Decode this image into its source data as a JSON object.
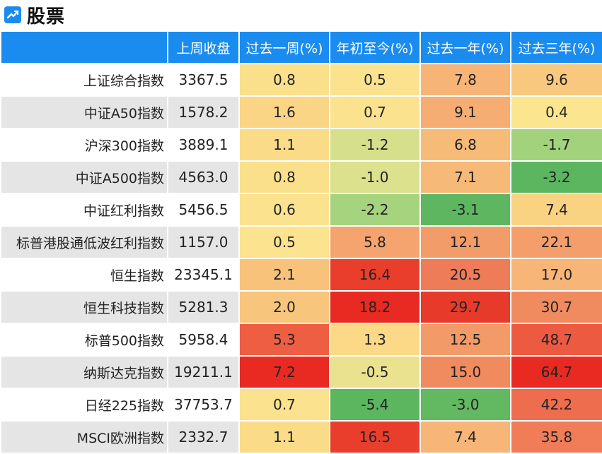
{
  "title": "股票",
  "icon": "trend-chart-icon",
  "columns": [
    "上周收盘",
    "过去一周(%)",
    "年初至今(%)",
    "过去一年(%)",
    "过去三年(%)"
  ],
  "rows": [
    {
      "name": "上证综合指数",
      "close": "3367.5",
      "values": [
        "0.8",
        "0.5",
        "7.8",
        "9.6"
      ],
      "colors": [
        "#fbe08c",
        "#fbe28f",
        "#f6b576",
        "#f8c87e"
      ]
    },
    {
      "name": "中证A50指数",
      "close": "1578.2",
      "values": [
        "1.6",
        "0.7",
        "9.1",
        "0.4"
      ],
      "colors": [
        "#fad585",
        "#fbe28f",
        "#f5ad73",
        "#fbe58f"
      ]
    },
    {
      "name": "沪深300指数",
      "close": "3889.1",
      "values": [
        "1.1",
        "-1.2",
        "6.8",
        "-1.7"
      ],
      "colors": [
        "#fadc88",
        "#d6e08c",
        "#f7bb78",
        "#a3d27c"
      ]
    },
    {
      "name": "中证A500指数",
      "close": "4563.0",
      "values": [
        "0.8",
        "-1.0",
        "7.1",
        "-3.2"
      ],
      "colors": [
        "#fbe08c",
        "#dbe18d",
        "#f7b977",
        "#5cb660"
      ]
    },
    {
      "name": "中证红利指数",
      "close": "5456.5",
      "values": [
        "0.6",
        "-2.2",
        "-3.1",
        "7.4"
      ],
      "colors": [
        "#fbe28e",
        "#a6d37d",
        "#5eb760",
        "#f9d282"
      ]
    },
    {
      "name": "标普港股通低波红利指数",
      "close": "1157.0",
      "values": [
        "0.5",
        "5.8",
        "12.1",
        "22.1"
      ],
      "colors": [
        "#fbe38f",
        "#f5a46f",
        "#f29c69",
        "#f49f6b"
      ]
    },
    {
      "name": "恒生指数",
      "close": "23345.1",
      "values": [
        "2.1",
        "16.4",
        "20.5",
        "17.0"
      ],
      "colors": [
        "#f8c27a",
        "#ea3e2c",
        "#ef7c58",
        "#f7b677"
      ]
    },
    {
      "name": "恒生科技指数",
      "close": "5281.3",
      "values": [
        "2.0",
        "18.2",
        "29.7",
        "30.7"
      ],
      "colors": [
        "#f8c57c",
        "#e82a22",
        "#e83a2b",
        "#f08b5f"
      ]
    },
    {
      "name": "标普500指数",
      "close": "5958.4",
      "values": [
        "5.3",
        "1.3",
        "12.5",
        "48.7"
      ],
      "colors": [
        "#ee5e42",
        "#fbd987",
        "#f29b68",
        "#ec5a42"
      ]
    },
    {
      "name": "纳斯达克指数",
      "close": "19211.1",
      "values": [
        "7.2",
        "-0.5",
        "15.0",
        "64.7"
      ],
      "colors": [
        "#e82a22",
        "#eae28f",
        "#f08a5f",
        "#e82a22"
      ]
    },
    {
      "name": "日经225指数",
      "close": "37753.7",
      "values": [
        "0.7",
        "-5.4",
        "-3.0",
        "42.2"
      ],
      "colors": [
        "#fbe28e",
        "#5cb660",
        "#63b862",
        "#ee6d4e"
      ]
    },
    {
      "name": "MSCI欧洲指数",
      "close": "2332.7",
      "values": [
        "1.1",
        "16.5",
        "7.4",
        "35.8"
      ],
      "colors": [
        "#fadc88",
        "#ea3e2c",
        "#f7b677",
        "#f07d58"
      ]
    }
  ]
}
